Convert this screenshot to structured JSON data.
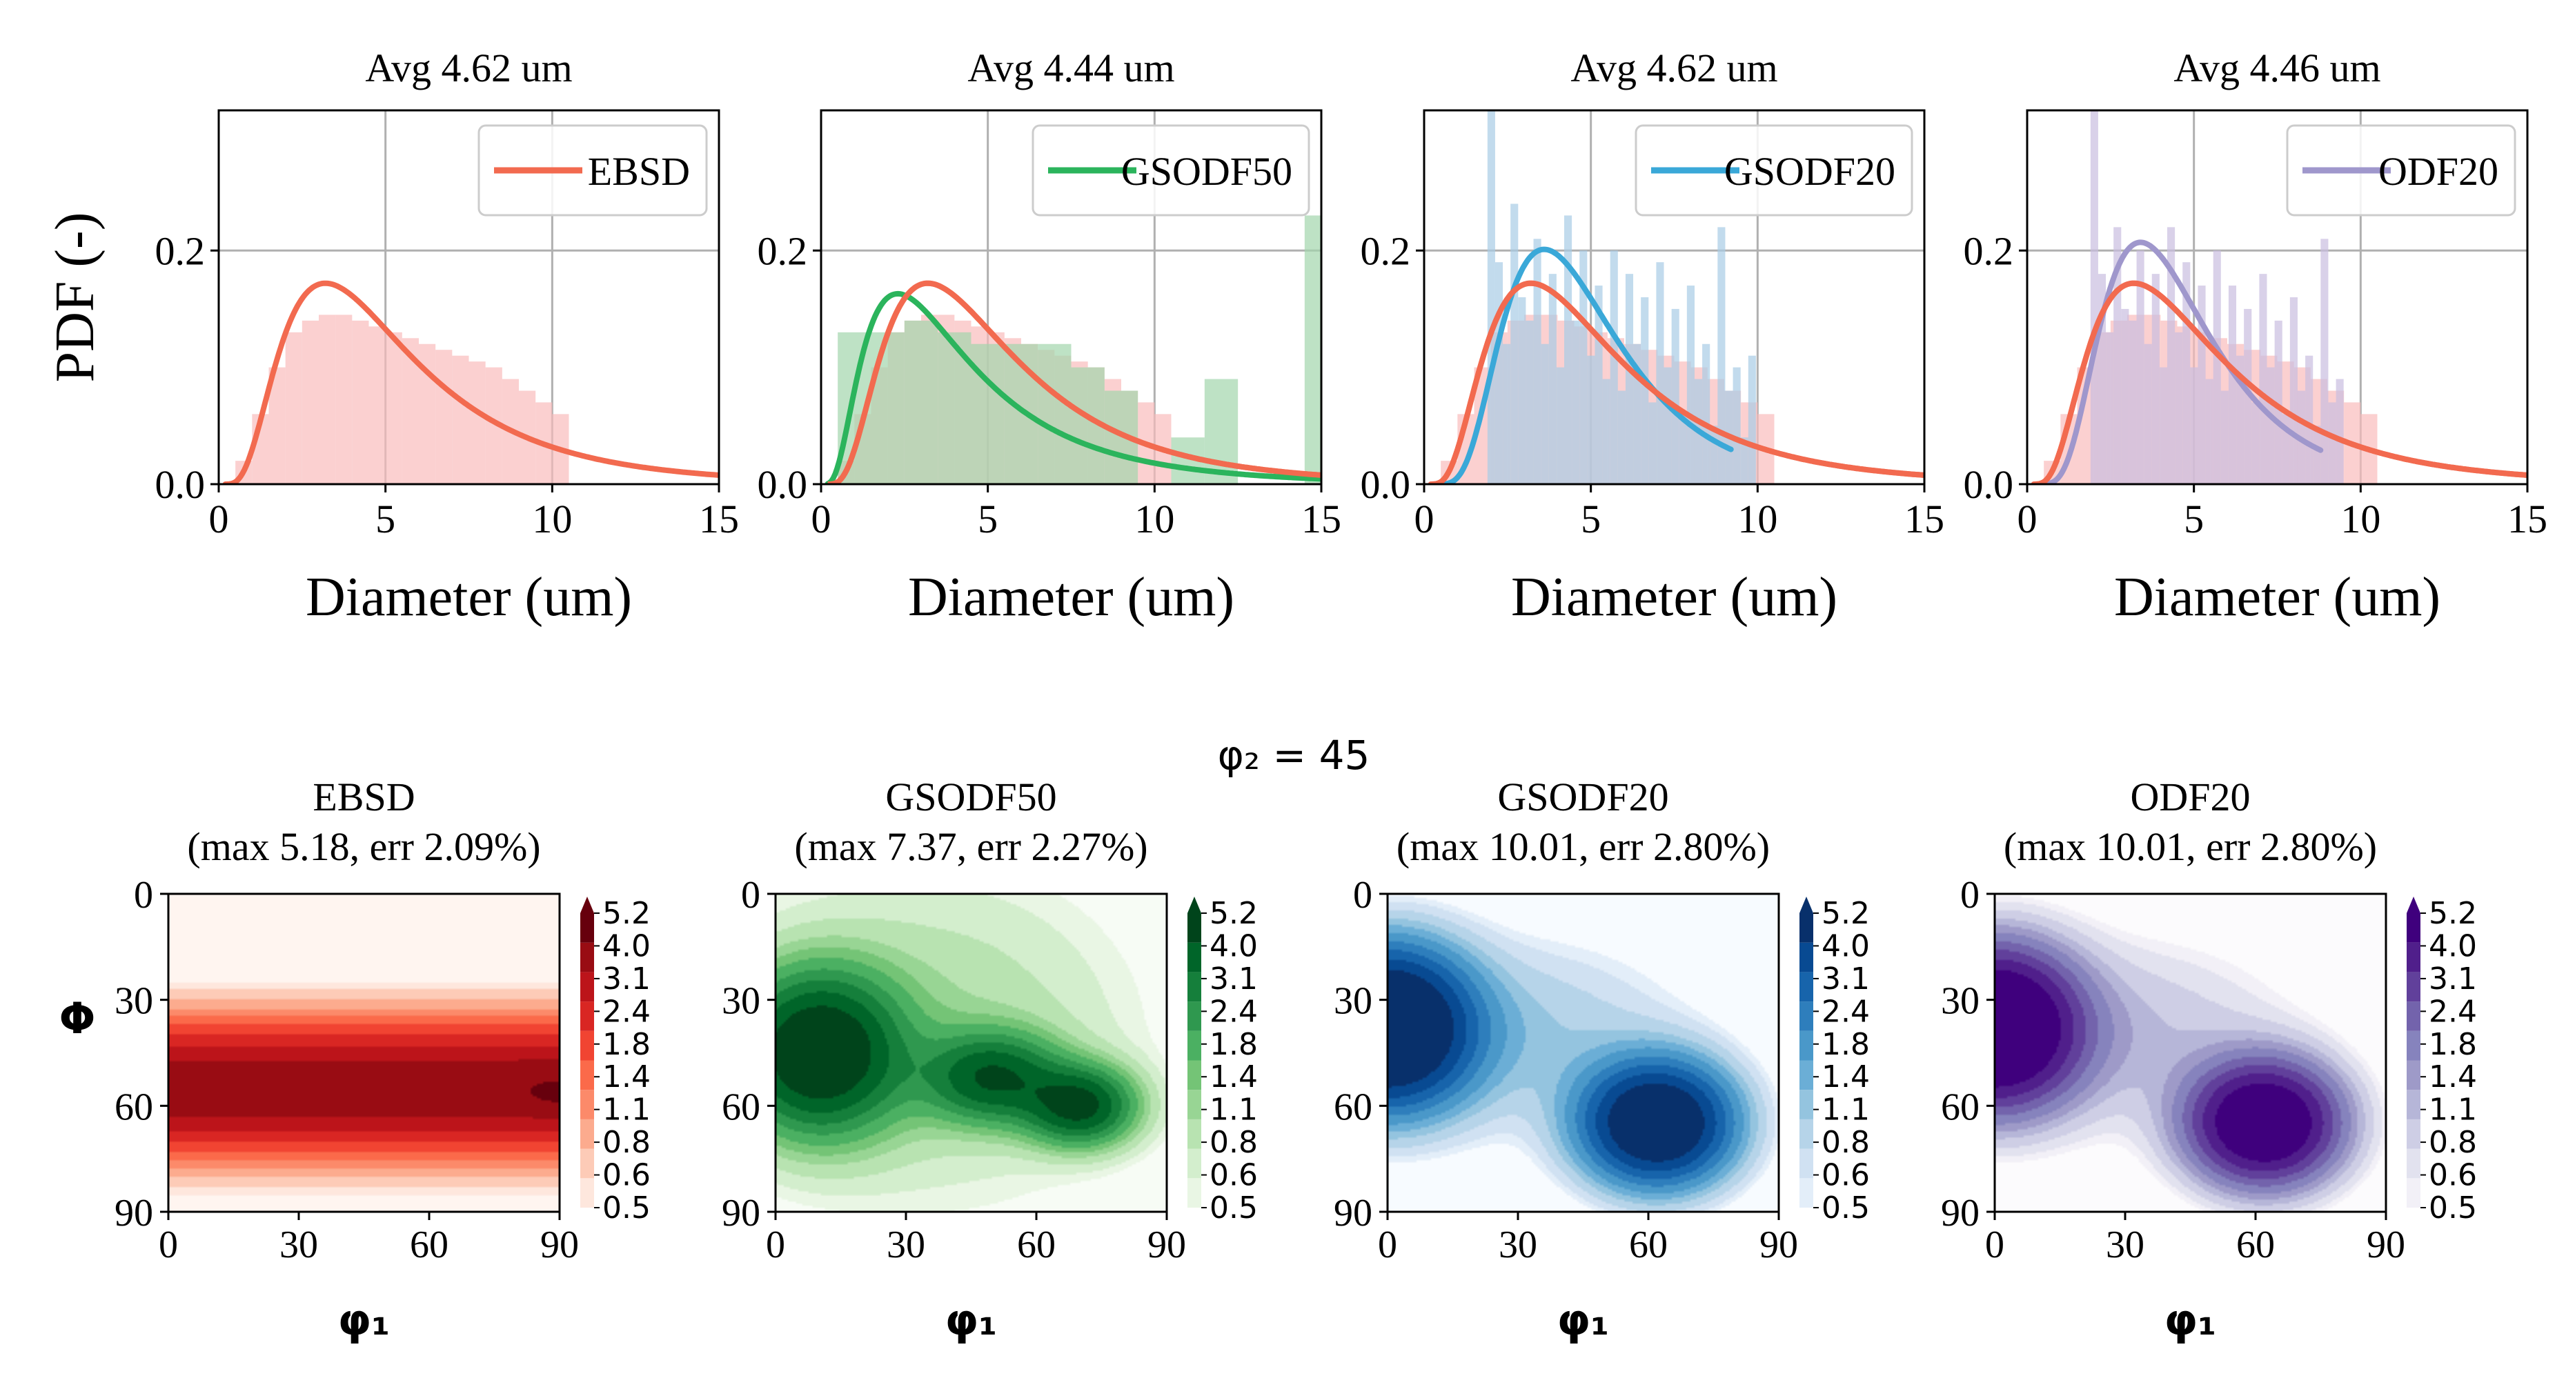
{
  "figure": {
    "phi2_label": "φ₂ = 45",
    "colorbar_ticks": [
      "5.2",
      "4.0",
      "3.1",
      "2.4",
      "1.8",
      "1.4",
      "1.1",
      "0.8",
      "0.6",
      "0.5"
    ]
  },
  "colors": {
    "ebsd": "#f26a4f",
    "ebsd_hist": "#f9bcbc",
    "gsodf50": "#2bb45c",
    "gsodf50_hist": "#a3d6ad",
    "gsodf20": "#3aa8d8",
    "gsodf20_hist": "#a8cce6",
    "odf20": "#9f97cc",
    "odf20_hist": "#c9bde0",
    "grid": "#b0b0b0",
    "axis": "#000000"
  },
  "chart_data": [
    {
      "type": "line",
      "panel": "pdf-1",
      "title": "Avg 4.62 um",
      "xlabel": "Diameter (um)",
      "ylabel": "PDF (-)",
      "xlim": [
        0,
        15
      ],
      "ylim": [
        0,
        0.32
      ],
      "xticks": [
        "0",
        "5",
        "10",
        "15"
      ],
      "yticks": [
        "0.0",
        "0.2"
      ],
      "legend": "EBSD",
      "series": [
        {
          "name": "EBSD",
          "color_key": "ebsd",
          "kind": "lognormal",
          "peak_x": 3.2,
          "peak_y": 0.172,
          "x_start": 0.2,
          "x_end": 15
        }
      ],
      "histograms": [
        {
          "series": "EBSD",
          "color_key": "ebsd_hist",
          "x_start": 0,
          "bin_width": 0.5,
          "values": [
            0.0,
            0.02,
            0.06,
            0.1,
            0.13,
            0.14,
            0.145,
            0.145,
            0.14,
            0.135,
            0.13,
            0.125,
            0.12,
            0.115,
            0.11,
            0.105,
            0.1,
            0.09,
            0.08,
            0.07,
            0.06
          ]
        }
      ]
    },
    {
      "type": "line",
      "panel": "pdf-2",
      "title": "Avg 4.44 um",
      "xlabel": "Diameter (um)",
      "ylabel": "",
      "xlim": [
        0,
        15
      ],
      "ylim": [
        0,
        0.32
      ],
      "xticks": [
        "0",
        "5",
        "10",
        "15"
      ],
      "yticks": [
        "0.0",
        "0.2"
      ],
      "legend": "GSODF50",
      "series": [
        {
          "name": "EBSD",
          "color_key": "ebsd",
          "kind": "lognormal",
          "peak_x": 3.2,
          "peak_y": 0.172,
          "x_start": 0.2,
          "x_end": 15
        },
        {
          "name": "GSODF50",
          "color_key": "gsodf50",
          "kind": "lognormal",
          "peak_x": 2.3,
          "peak_y": 0.163,
          "x_start": 0.2,
          "x_end": 15
        }
      ],
      "histograms": [
        {
          "series": "EBSD",
          "color_key": "ebsd_hist",
          "x_start": 0,
          "bin_width": 0.5,
          "values": [
            0.0,
            0.02,
            0.06,
            0.1,
            0.13,
            0.14,
            0.145,
            0.145,
            0.14,
            0.135,
            0.13,
            0.125,
            0.12,
            0.115,
            0.11,
            0.105,
            0.1,
            0.09,
            0.08,
            0.07,
            0.06
          ]
        },
        {
          "series": "GSODF50",
          "color_key": "gsodf50_hist",
          "x_start": 0.5,
          "bin_width": 1.0,
          "values": [
            0.13,
            0.13,
            0.14,
            0.13,
            0.12,
            0.12,
            0.12,
            0.1,
            0.08,
            0,
            0.04,
            0.09,
            0,
            0,
            0.23
          ]
        }
      ]
    },
    {
      "type": "line",
      "panel": "pdf-3",
      "title": "Avg 4.62 um",
      "xlabel": "Diameter (um)",
      "ylabel": "",
      "xlim": [
        0,
        15
      ],
      "ylim": [
        0,
        0.32
      ],
      "xticks": [
        "0",
        "5",
        "10",
        "15"
      ],
      "yticks": [
        "0.0",
        "0.2"
      ],
      "legend": "GSODF20",
      "series": [
        {
          "name": "EBSD",
          "color_key": "ebsd",
          "kind": "lognormal",
          "peak_x": 3.2,
          "peak_y": 0.172,
          "x_start": 0.2,
          "x_end": 15
        },
        {
          "name": "GSODF20",
          "color_key": "gsodf20",
          "kind": "lognormal",
          "peak_x": 3.6,
          "peak_y": 0.201,
          "x_start": 0.5,
          "x_end": 9.2
        }
      ],
      "histograms": [
        {
          "series": "EBSD",
          "color_key": "ebsd_hist",
          "x_start": 0,
          "bin_width": 0.5,
          "values": [
            0.0,
            0.02,
            0.06,
            0.1,
            0.13,
            0.14,
            0.145,
            0.145,
            0.14,
            0.135,
            0.13,
            0.125,
            0.12,
            0.115,
            0.11,
            0.105,
            0.1,
            0.09,
            0.08,
            0.07,
            0.06
          ]
        },
        {
          "series": "GSODF20",
          "color_key": "gsodf20_hist",
          "x_start": 1.9,
          "bin_width": 0.23,
          "values": [
            0.32,
            0.19,
            0.12,
            0.24,
            0.16,
            0.14,
            0.21,
            0.12,
            0.18,
            0.1,
            0.23,
            0.14,
            0.2,
            0.11,
            0.17,
            0.09,
            0.2,
            0.08,
            0.18,
            0.12,
            0.16,
            0.07,
            0.19,
            0.1,
            0.15,
            0.06,
            0.17,
            0.09,
            0.12,
            0.05,
            0.22,
            0.08,
            0.1,
            0.04,
            0.11
          ]
        }
      ]
    },
    {
      "type": "line",
      "panel": "pdf-4",
      "title": "Avg 4.46 um",
      "xlabel": "Diameter (um)",
      "ylabel": "",
      "xlim": [
        0,
        15
      ],
      "ylim": [
        0,
        0.32
      ],
      "xticks": [
        "0",
        "5",
        "10",
        "15"
      ],
      "yticks": [
        "0.0",
        "0.2"
      ],
      "legend": "ODF20",
      "series": [
        {
          "name": "EBSD",
          "color_key": "ebsd",
          "kind": "lognormal",
          "peak_x": 3.2,
          "peak_y": 0.172,
          "x_start": 0.2,
          "x_end": 15
        },
        {
          "name": "ODF20",
          "color_key": "odf20",
          "kind": "lognormal",
          "peak_x": 3.4,
          "peak_y": 0.207,
          "x_start": 0.5,
          "x_end": 8.8
        }
      ],
      "histograms": [
        {
          "series": "EBSD",
          "color_key": "ebsd_hist",
          "x_start": 0,
          "bin_width": 0.5,
          "values": [
            0.0,
            0.02,
            0.06,
            0.1,
            0.13,
            0.14,
            0.145,
            0.145,
            0.14,
            0.135,
            0.13,
            0.125,
            0.12,
            0.115,
            0.11,
            0.105,
            0.1,
            0.09,
            0.08,
            0.07,
            0.06
          ]
        },
        {
          "series": "ODF20",
          "color_key": "odf20_hist",
          "x_start": 1.9,
          "bin_width": 0.23,
          "values": [
            0.32,
            0.18,
            0.13,
            0.22,
            0.15,
            0.14,
            0.2,
            0.12,
            0.18,
            0.1,
            0.22,
            0.13,
            0.19,
            0.1,
            0.17,
            0.09,
            0.2,
            0.08,
            0.17,
            0.11,
            0.15,
            0.07,
            0.18,
            0.1,
            0.14,
            0.06,
            0.16,
            0.08,
            0.11,
            0.05,
            0.21,
            0.07,
            0.09
          ]
        }
      ]
    },
    {
      "type": "heatmap",
      "panel": "odf-1",
      "title": "EBSD",
      "subtitle": "(max 5.18, err 2.09%)",
      "xlabel": "φ₁",
      "ylabel": "Φ",
      "xlim": [
        0,
        90
      ],
      "ylim": [
        0,
        90
      ],
      "xticks": [
        "0",
        "30",
        "60",
        "90"
      ],
      "yticks": [
        "0",
        "30",
        "60",
        "90"
      ],
      "colormap": [
        "#fff5f0",
        "#fee4d8",
        "#fcbba1",
        "#fc9272",
        "#fb6a4a",
        "#ef3b2c",
        "#cb181d",
        "#a50f15",
        "#67000d"
      ],
      "clim": [
        0.5,
        5.2
      ],
      "background": 0.3,
      "bands": [
        {
          "center_y": 55,
          "sigma_y": 12,
          "amp": 4.6
        }
      ],
      "peaks": [
        {
          "x": 90,
          "y": 57,
          "sx": 6,
          "sy": 4,
          "amp": 0.6
        }
      ]
    },
    {
      "type": "heatmap",
      "panel": "odf-2",
      "title": "GSODF50",
      "subtitle": "(max 7.37, err 2.27%)",
      "xlabel": "φ₁",
      "ylabel": "",
      "xlim": [
        0,
        90
      ],
      "ylim": [
        0,
        90
      ],
      "xticks": [
        "0",
        "30",
        "60",
        "90"
      ],
      "yticks": [
        "0",
        "30",
        "60",
        "90"
      ],
      "colormap": [
        "#f7fcf5",
        "#e5f5e0",
        "#c7e9c0",
        "#a1d99b",
        "#74c476",
        "#41ab5d",
        "#238b45",
        "#006d2c",
        "#00441b"
      ],
      "clim": [
        0.5,
        5.2
      ],
      "background": 0.3,
      "bands": [],
      "peaks": [
        {
          "x": 10,
          "y": 45,
          "sx": 12,
          "sy": 14,
          "amp": 6.8
        },
        {
          "x": 50,
          "y": 52,
          "sx": 10,
          "sy": 8,
          "amp": 4.5
        },
        {
          "x": 70,
          "y": 60,
          "sx": 8,
          "sy": 7,
          "amp": 5.2
        },
        {
          "x": 35,
          "y": 40,
          "sx": 30,
          "sy": 30,
          "amp": 0.8
        }
      ]
    },
    {
      "type": "heatmap",
      "panel": "odf-3",
      "title": "GSODF20",
      "subtitle": "(max 10.01, err 2.80%)",
      "xlabel": "φ₁",
      "ylabel": "",
      "xlim": [
        0,
        90
      ],
      "ylim": [
        0,
        90
      ],
      "xticks": [
        "0",
        "30",
        "60",
        "90"
      ],
      "yticks": [
        "0",
        "30",
        "60",
        "90"
      ],
      "colormap": [
        "#f7fbff",
        "#deebf7",
        "#c6dbef",
        "#9ecae1",
        "#6baed6",
        "#4292c6",
        "#2171b5",
        "#08519c",
        "#08306b"
      ],
      "clim": [
        0.5,
        5.2
      ],
      "background": 0.2,
      "bands": [],
      "peaks": [
        {
          "x": 0,
          "y": 38,
          "sx": 12,
          "sy": 14,
          "amp": 9.5
        },
        {
          "x": 62,
          "y": 65,
          "sx": 11,
          "sy": 11,
          "amp": 8.0
        },
        {
          "x": 30,
          "y": 40,
          "sx": 25,
          "sy": 18,
          "amp": 0.9
        }
      ]
    },
    {
      "type": "heatmap",
      "panel": "odf-4",
      "title": "ODF20",
      "subtitle": "(max 10.01, err 2.80%)",
      "xlabel": "φ₁",
      "ylabel": "",
      "xlim": [
        0,
        90
      ],
      "ylim": [
        0,
        90
      ],
      "xticks": [
        "0",
        "30",
        "60",
        "90"
      ],
      "yticks": [
        "0",
        "30",
        "60",
        "90"
      ],
      "colormap": [
        "#fcfbfd",
        "#efedf5",
        "#dadaeb",
        "#bcbddc",
        "#9e9ac8",
        "#807dba",
        "#6a51a3",
        "#54278f",
        "#3f007d"
      ],
      "clim": [
        0.5,
        5.2
      ],
      "background": 0.2,
      "bands": [],
      "peaks": [
        {
          "x": 0,
          "y": 38,
          "sx": 12,
          "sy": 14,
          "amp": 9.5
        },
        {
          "x": 62,
          "y": 65,
          "sx": 11,
          "sy": 11,
          "amp": 8.0
        },
        {
          "x": 30,
          "y": 40,
          "sx": 25,
          "sy": 18,
          "amp": 0.9
        }
      ]
    }
  ]
}
